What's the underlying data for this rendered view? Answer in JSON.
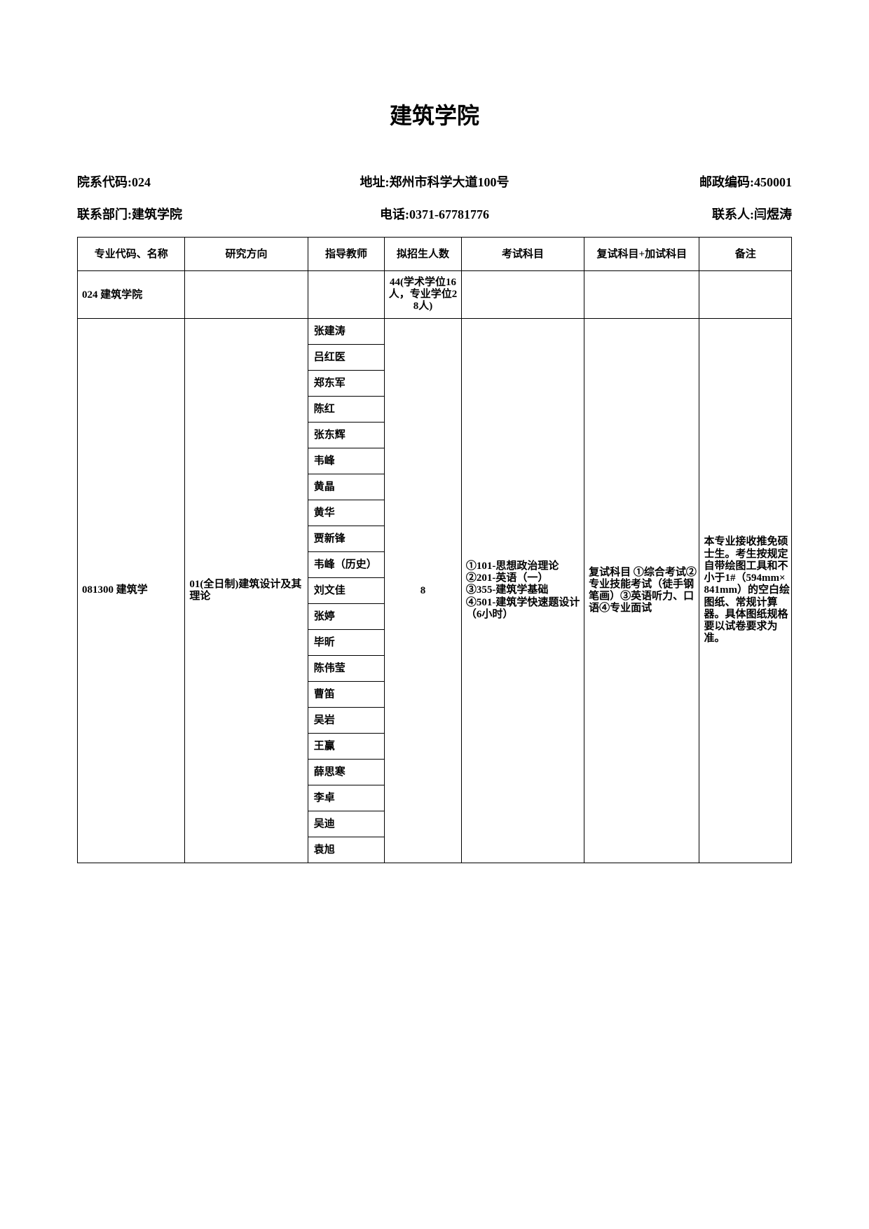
{
  "title": "建筑学院",
  "info": {
    "dept_code_label": "院系代码:024",
    "address_label": "地址:郑州市科学大道100号",
    "postal_label": "邮政编码:450001",
    "contact_dept_label": "联系部门:建筑学院",
    "phone_label": "电话:0371-67781776",
    "contact_person_label": "联系人:闫煜涛"
  },
  "headers": {
    "code": "专业代码、名称",
    "direction": "研究方向",
    "teacher": "指导教师",
    "enrollment": "拟招生人数",
    "exam": "考试科目",
    "reexam": "复试科目+加试科目",
    "note": "备注"
  },
  "dept_row": {
    "name": "024 建筑学院",
    "enrollment": "44(学术学位16人，专业学位28人)"
  },
  "major": {
    "code_name": "081300 建筑学",
    "direction": "01(全日制)建筑设计及其理论",
    "enrollment": "8",
    "exam": "①101-思想政治理论\n②201-英语（一）\n③355-建筑学基础\n④501-建筑学快速题设计（6小时）",
    "reexam": "复试科目 ①综合考试②专业技能考试（徒手钢笔画）③英语听力、口语④专业面试",
    "note": "本专业接收推免硕士生。考生按规定自带绘图工具和不小于1#（594mm×841mm）的空白绘图纸、常规计算器。具体图纸规格要以试卷要求为准。"
  },
  "teachers": [
    "张建涛",
    "吕红医",
    "郑东军",
    "陈红",
    "张东辉",
    "韦峰",
    "黄晶",
    "黄华",
    "贾新锋",
    "韦峰（历史）",
    "刘文佳",
    "张婷",
    "毕昕",
    "陈伟莹",
    "曹笛",
    "吴岩",
    "王赢",
    "薛思寒",
    "李卓",
    "吴迪",
    "袁旭"
  ]
}
